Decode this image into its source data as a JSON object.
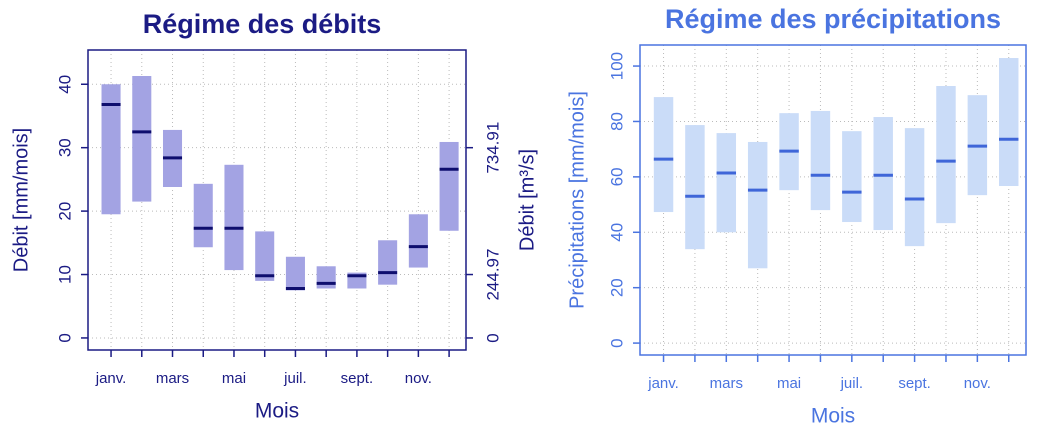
{
  "chart_data": [
    {
      "type": "range",
      "title": "Régime des débits",
      "x_label": "Mois",
      "y_label": "Débit [mm/mois]",
      "y2_label": "Débit [m³/s]",
      "categories": [
        "janv.",
        null,
        "mars",
        null,
        "mai",
        null,
        "juil.",
        null,
        "sept.",
        null,
        "nov.",
        null
      ],
      "low": [
        19.5,
        21.5,
        23.8,
        14.3,
        10.7,
        9.0,
        7.5,
        7.8,
        7.8,
        8.4,
        11.1,
        16.9
      ],
      "high": [
        40.0,
        41.3,
        32.8,
        24.3,
        27.3,
        16.8,
        12.8,
        11.3,
        10.3,
        15.4,
        19.5,
        30.9
      ],
      "median": [
        36.8,
        32.5,
        28.4,
        17.3,
        17.3,
        9.8,
        7.8,
        8.6,
        9.8,
        10.3,
        14.4,
        26.6
      ],
      "box_color": "#a3a3e3",
      "median_color": "#0e0e6e",
      "text_color": "#1b1b84",
      "ylim": [
        -1.9,
        45.4
      ],
      "yticks": [
        0,
        10,
        20,
        30,
        40
      ],
      "y2lim": [
        -46.5,
        1112.2
      ],
      "y2ticks": [
        0,
        244.97,
        734.91
      ],
      "grid": true
    },
    {
      "type": "range",
      "title": "Régime des précipitations",
      "x_label": "Mois",
      "y_label": "Précipitations [mm/mois]",
      "categories": [
        "janv.",
        null,
        "mars",
        null,
        "mai",
        null,
        "juil.",
        null,
        "sept.",
        null,
        "nov.",
        null
      ],
      "low": [
        47.3,
        33.9,
        40.0,
        27.0,
        55.2,
        48.0,
        43.7,
        40.8,
        35.0,
        43.3,
        53.4,
        56.7
      ],
      "high": [
        88.8,
        78.7,
        75.8,
        72.6,
        83.0,
        83.8,
        76.5,
        81.6,
        77.6,
        92.8,
        89.5,
        102.9
      ],
      "median": [
        66.4,
        53.0,
        61.4,
        55.2,
        69.3,
        60.6,
        54.5,
        60.6,
        52.0,
        65.7,
        71.1,
        73.6
      ],
      "box_color": "#cadcf8",
      "median_color": "#3f66d8",
      "text_color": "#4a74e0",
      "ylim": [
        -4.3,
        107.6
      ],
      "yticks": [
        0,
        20,
        40,
        60,
        80,
        100
      ],
      "grid": true
    }
  ]
}
